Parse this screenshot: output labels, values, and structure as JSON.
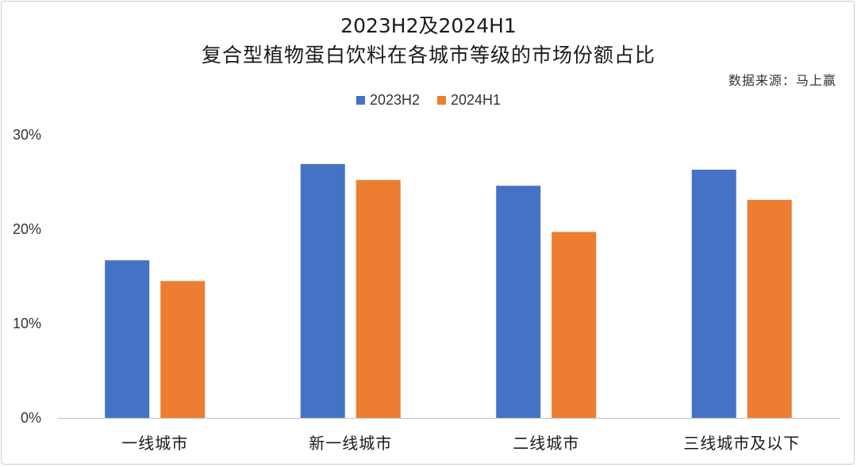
{
  "chart_data": {
    "type": "bar",
    "title_line1": "2023H2及2024H1",
    "title_line2": "复合型植物蛋白饮料在各城市等级的市场份额占比",
    "source": "数据来源：马上赢",
    "categories": [
      "一线城市",
      "新一线城市",
      "二线城市",
      "三线城市及以下"
    ],
    "series": [
      {
        "name": "2023H2",
        "color": "#4472C4",
        "values": [
          16.7,
          26.9,
          24.6,
          26.3
        ]
      },
      {
        "name": "2024H1",
        "color": "#ED7D31",
        "values": [
          14.5,
          25.2,
          19.7,
          23.1
        ]
      }
    ],
    "ylim": [
      0,
      30
    ],
    "yticks": [
      0,
      10,
      20,
      30
    ],
    "ytick_labels": [
      "0%",
      "10%",
      "20%",
      "30%"
    ],
    "xlabel": "",
    "ylabel": "",
    "grid": false,
    "legend_position": "top-center"
  }
}
